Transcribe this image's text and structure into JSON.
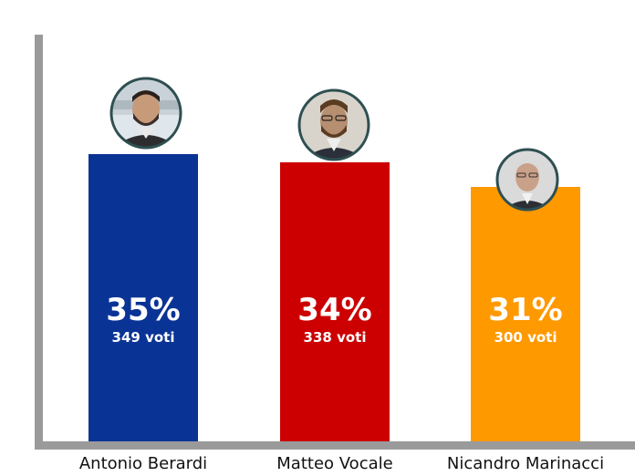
{
  "chart_data": {
    "type": "bar",
    "title": "",
    "xlabel": "",
    "ylabel": "",
    "ylim": [
      0,
      40
    ],
    "grid": false,
    "categories": [
      "Antonio Berardi",
      "Matteo Vocale",
      "Nicandro Marinacci"
    ],
    "values": [
      35,
      34,
      31
    ],
    "value_labels": [
      "35%",
      "34%",
      "31%"
    ],
    "vote_labels": [
      "349 voti",
      "338 voti",
      "300 voti"
    ],
    "colors": [
      "#0a3396",
      "#cc0000",
      "#ff9900"
    ],
    "axis_color": "#9a9a9a",
    "marker": "circular-portrait-photo"
  }
}
